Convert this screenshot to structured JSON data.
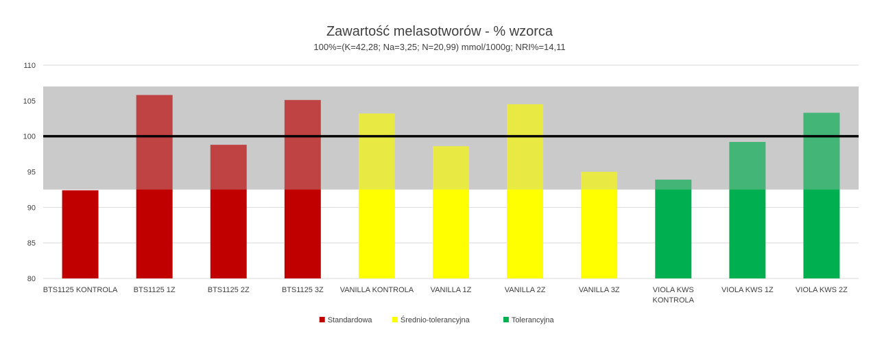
{
  "chart_data": {
    "type": "bar",
    "title": "Zawartość melasotworów - % wzorca",
    "subtitle": "100%=(K=42,28; Na=3,25; N=20,99) mmol/1000g; NRI%=14,11",
    "xlabel": "",
    "ylabel": "",
    "ylim": [
      80,
      110
    ],
    "yticks": [
      80,
      85,
      90,
      95,
      100,
      105,
      110
    ],
    "grid": true,
    "legend_position": "bottom",
    "reference_line": 100,
    "tolerance_band": [
      92.5,
      107
    ],
    "categories": [
      "BTS1125 KONTROLA",
      "BTS1125 1Z",
      "BTS1125 2Z",
      "BTS1125 3Z",
      "VANILLA KONTROLA",
      "VANILLA 1Z",
      "VANILLA 2Z",
      "VANILLA 3Z",
      "VIOLA KWS KONTROLA",
      "VIOLA KWS 1Z",
      "VIOLA KWS 2Z"
    ],
    "series": [
      {
        "name": "Standardowa",
        "color": "#C00000",
        "values": [
          92.4,
          105.8,
          98.8,
          105.1,
          null,
          null,
          null,
          null,
          null,
          null,
          null
        ]
      },
      {
        "name": "Średnio-tolerancyjna",
        "color": "#FFFF00",
        "values": [
          null,
          null,
          null,
          null,
          103.2,
          98.6,
          104.5,
          95.0,
          null,
          null,
          null
        ]
      },
      {
        "name": "Tolerancyjna",
        "color": "#00B050",
        "values": [
          null,
          null,
          null,
          null,
          null,
          null,
          null,
          null,
          93.9,
          99.2,
          103.3
        ]
      }
    ]
  }
}
